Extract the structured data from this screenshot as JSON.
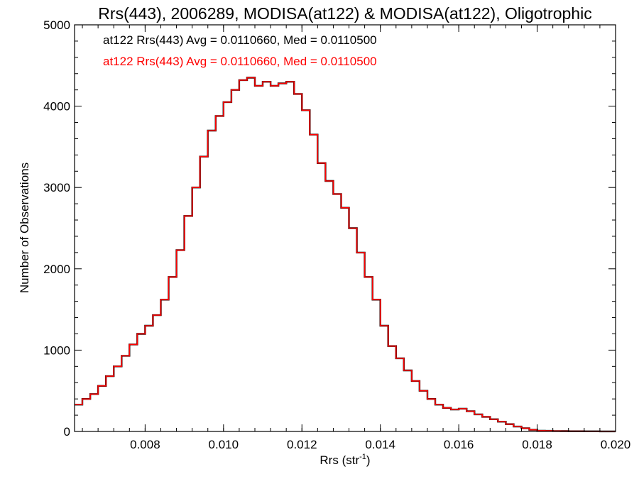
{
  "chart_data": {
    "type": "line",
    "title": "Rrs(443), 2006289, MODISA(at122) & MODISA(at122), Oligotrophic",
    "xlabel": "Rrs (str",
    "xlabel_sup": "-1",
    "xlabel_end": ")",
    "ylabel": "Number of Observations",
    "xlim": [
      0.0062,
      0.02
    ],
    "ylim": [
      0,
      5000
    ],
    "xticks": [
      0.008,
      0.01,
      0.012,
      0.014,
      0.016,
      0.018,
      0.02
    ],
    "xtick_labels": [
      "0.008",
      "0.010",
      "0.012",
      "0.014",
      "0.016",
      "0.018",
      "0.020"
    ],
    "yticks": [
      0,
      1000,
      2000,
      3000,
      4000,
      5000
    ],
    "ytick_labels": [
      "0",
      "1000",
      "2000",
      "3000",
      "4000",
      "5000"
    ],
    "annotations": [
      {
        "text": "at122 Rrs(443) Avg = 0.0110660, Med = 0.0110500",
        "color": "#000000"
      },
      {
        "text": "at122 Rrs(443) Avg = 0.0110660, Med = 0.0110500",
        "color": "#ff0000"
      }
    ],
    "series": [
      {
        "color": "#000000",
        "x": [
          0.0062,
          0.0064,
          0.0066,
          0.0068,
          0.007,
          0.0072,
          0.0074,
          0.0076,
          0.0078,
          0.008,
          0.0082,
          0.0084,
          0.0086,
          0.0088,
          0.009,
          0.0092,
          0.0094,
          0.0096,
          0.0098,
          0.01,
          0.0102,
          0.0104,
          0.0106,
          0.0108,
          0.011,
          0.0112,
          0.0114,
          0.0116,
          0.0118,
          0.012,
          0.0122,
          0.0124,
          0.0126,
          0.0128,
          0.013,
          0.0132,
          0.0134,
          0.0136,
          0.0138,
          0.014,
          0.0142,
          0.0144,
          0.0146,
          0.0148,
          0.015,
          0.0152,
          0.0154,
          0.0156,
          0.0158,
          0.016,
          0.0162,
          0.0164,
          0.0166,
          0.0168,
          0.017,
          0.0172,
          0.0174,
          0.0176,
          0.0178,
          0.018,
          0.0182,
          0.0184,
          0.0186,
          0.0188,
          0.019,
          0.0192,
          0.0194,
          0.0196,
          0.0198,
          0.02
        ],
        "y": [
          330,
          400,
          460,
          560,
          680,
          800,
          930,
          1070,
          1200,
          1300,
          1430,
          1620,
          1900,
          2230,
          2650,
          3000,
          3380,
          3700,
          3880,
          4050,
          4200,
          4320,
          4350,
          4250,
          4300,
          4250,
          4280,
          4300,
          4150,
          3950,
          3650,
          3300,
          3080,
          2920,
          2750,
          2500,
          2200,
          1900,
          1620,
          1300,
          1050,
          900,
          750,
          620,
          500,
          400,
          330,
          290,
          270,
          280,
          250,
          210,
          180,
          150,
          120,
          90,
          60,
          40,
          20,
          10,
          8,
          5,
          4,
          3,
          3,
          2,
          2,
          1,
          1,
          1
        ]
      },
      {
        "color": "#ff0000",
        "x": [
          0.0062,
          0.0064,
          0.0066,
          0.0068,
          0.007,
          0.0072,
          0.0074,
          0.0076,
          0.0078,
          0.008,
          0.0082,
          0.0084,
          0.0086,
          0.0088,
          0.009,
          0.0092,
          0.0094,
          0.0096,
          0.0098,
          0.01,
          0.0102,
          0.0104,
          0.0106,
          0.0108,
          0.011,
          0.0112,
          0.0114,
          0.0116,
          0.0118,
          0.012,
          0.0122,
          0.0124,
          0.0126,
          0.0128,
          0.013,
          0.0132,
          0.0134,
          0.0136,
          0.0138,
          0.014,
          0.0142,
          0.0144,
          0.0146,
          0.0148,
          0.015,
          0.0152,
          0.0154,
          0.0156,
          0.0158,
          0.016,
          0.0162,
          0.0164,
          0.0166,
          0.0168,
          0.017,
          0.0172,
          0.0174,
          0.0176,
          0.0178,
          0.018,
          0.0182,
          0.0184,
          0.0186,
          0.0188,
          0.019,
          0.0192,
          0.0194,
          0.0196,
          0.0198,
          0.02
        ],
        "y": [
          330,
          400,
          460,
          560,
          680,
          800,
          930,
          1070,
          1200,
          1300,
          1430,
          1620,
          1900,
          2230,
          2650,
          3000,
          3380,
          3700,
          3880,
          4050,
          4200,
          4320,
          4350,
          4250,
          4300,
          4250,
          4280,
          4300,
          4150,
          3950,
          3650,
          3300,
          3080,
          2920,
          2750,
          2500,
          2200,
          1900,
          1620,
          1300,
          1050,
          900,
          750,
          620,
          500,
          400,
          330,
          290,
          270,
          280,
          250,
          210,
          180,
          150,
          120,
          90,
          60,
          40,
          20,
          10,
          8,
          5,
          4,
          3,
          3,
          2,
          2,
          1,
          1,
          1
        ]
      }
    ]
  }
}
